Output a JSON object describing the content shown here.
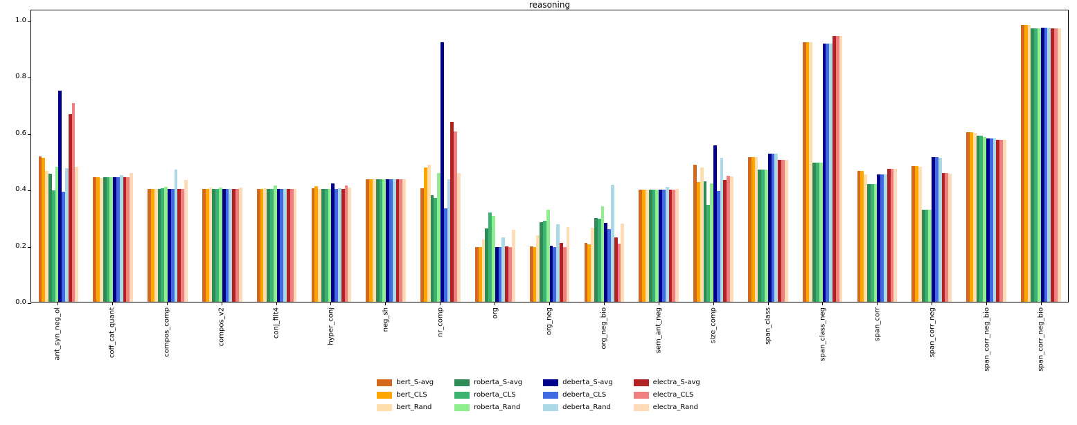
{
  "chart_data": {
    "type": "bar",
    "title": "reasoning",
    "xlabel": "",
    "ylabel": "",
    "ylim": [
      0.0,
      1.0
    ],
    "y_ticks": [
      "0.0",
      "0.2",
      "0.4",
      "0.6",
      "0.8",
      "1.0"
    ],
    "grid": false,
    "legend_position": "below-center",
    "categories": [
      "ant_syn_neg_ol",
      "coff_cat_quant",
      "compos_comp",
      "compos_v2",
      "conj_filt4",
      "hyper_conj",
      "neg_sh",
      "nr_comp",
      "org",
      "org_neg",
      "org_neg_bio",
      "sem_ant_neg",
      "size_comp",
      "span_class",
      "span_class_neg",
      "span_corr",
      "span_corr_neg",
      "span_corr_neg_bio",
      "span_corr_neg_bio"
    ],
    "series": [
      {
        "name": "bert_S-avg",
        "color": "#D2691E",
        "values": [
          0.515,
          0.443,
          0.4,
          0.4,
          0.4,
          0.402,
          0.435,
          0.403,
          0.195,
          0.196,
          0.21,
          0.399,
          0.486,
          0.514,
          0.921,
          0.464,
          0.482,
          0.601,
          0.984
        ]
      },
      {
        "name": "bert_CLS",
        "color": "#FFA500",
        "values": [
          0.51,
          0.443,
          0.4,
          0.4,
          0.4,
          0.41,
          0.435,
          0.476,
          0.195,
          0.193,
          0.204,
          0.399,
          0.424,
          0.514,
          0.921,
          0.464,
          0.482,
          0.601,
          0.984
        ]
      },
      {
        "name": "bert_Rand",
        "color": "#FFDEAD",
        "values": [
          0.465,
          0.44,
          0.4,
          0.405,
          0.403,
          0.4,
          0.435,
          0.487,
          0.222,
          0.236,
          0.263,
          0.399,
          0.477,
          0.514,
          0.921,
          0.453,
          0.48,
          0.599,
          0.984
        ]
      },
      {
        "name": "roberta_S-avg",
        "color": "#2E8B57",
        "values": [
          0.455,
          0.443,
          0.4,
          0.4,
          0.4,
          0.4,
          0.435,
          0.378,
          0.261,
          0.282,
          0.298,
          0.399,
          0.427,
          0.469,
          0.494,
          0.417,
          0.328,
          0.59,
          0.971
        ]
      },
      {
        "name": "roberta_CLS",
        "color": "#3CB371",
        "values": [
          0.395,
          0.443,
          0.403,
          0.4,
          0.4,
          0.4,
          0.435,
          0.369,
          0.318,
          0.287,
          0.294,
          0.399,
          0.345,
          0.469,
          0.494,
          0.417,
          0.328,
          0.589,
          0.971
        ]
      },
      {
        "name": "roberta_Rand",
        "color": "#90EE90",
        "values": [
          0.48,
          0.443,
          0.408,
          0.405,
          0.412,
          0.4,
          0.435,
          0.458,
          0.304,
          0.326,
          0.339,
          0.399,
          0.42,
          0.469,
          0.494,
          0.417,
          0.328,
          0.586,
          0.971
        ]
      },
      {
        "name": "deberta_S-avg",
        "color": "#00008B",
        "values": [
          0.75,
          0.443,
          0.4,
          0.4,
          0.4,
          0.421,
          0.435,
          0.922,
          0.195,
          0.2,
          0.279,
          0.399,
          0.556,
          0.527,
          0.917,
          0.451,
          0.513,
          0.58,
          0.974
        ]
      },
      {
        "name": "deberta_CLS",
        "color": "#4169E1",
        "values": [
          0.39,
          0.443,
          0.4,
          0.4,
          0.4,
          0.4,
          0.435,
          0.332,
          0.193,
          0.194,
          0.259,
          0.399,
          0.394,
          0.527,
          0.917,
          0.451,
          0.513,
          0.58,
          0.974
        ]
      },
      {
        "name": "deberta_Rand",
        "color": "#ADD8E6",
        "values": [
          0.475,
          0.45,
          0.47,
          0.4,
          0.4,
          0.403,
          0.435,
          0.435,
          0.228,
          0.276,
          0.416,
          0.408,
          0.51,
          0.525,
          0.917,
          0.452,
          0.51,
          0.579,
          0.974
        ]
      },
      {
        "name": "electra_S-avg",
        "color": "#B22222",
        "values": [
          0.665,
          0.443,
          0.4,
          0.4,
          0.4,
          0.4,
          0.435,
          0.638,
          0.197,
          0.21,
          0.228,
          0.399,
          0.432,
          0.504,
          0.944,
          0.473,
          0.457,
          0.576,
          0.971
        ]
      },
      {
        "name": "electra_CLS",
        "color": "#F08080",
        "values": [
          0.705,
          0.443,
          0.4,
          0.4,
          0.4,
          0.412,
          0.435,
          0.604,
          0.193,
          0.194,
          0.206,
          0.399,
          0.447,
          0.504,
          0.944,
          0.473,
          0.457,
          0.576,
          0.971
        ]
      },
      {
        "name": "electra_Rand",
        "color": "#FFDAB9",
        "values": [
          0.48,
          0.457,
          0.432,
          0.405,
          0.4,
          0.405,
          0.435,
          0.458,
          0.255,
          0.265,
          0.277,
          0.4,
          0.445,
          0.504,
          0.943,
          0.473,
          0.455,
          0.576,
          0.971
        ]
      }
    ],
    "legend_columns": [
      [
        "bert_S-avg",
        "bert_CLS",
        "bert_Rand"
      ],
      [
        "roberta_S-avg",
        "roberta_CLS",
        "roberta_Rand"
      ],
      [
        "deberta_S-avg",
        "deberta_CLS",
        "deberta_Rand"
      ],
      [
        "electra_S-avg",
        "electra_CLS",
        "electra_Rand"
      ]
    ]
  }
}
